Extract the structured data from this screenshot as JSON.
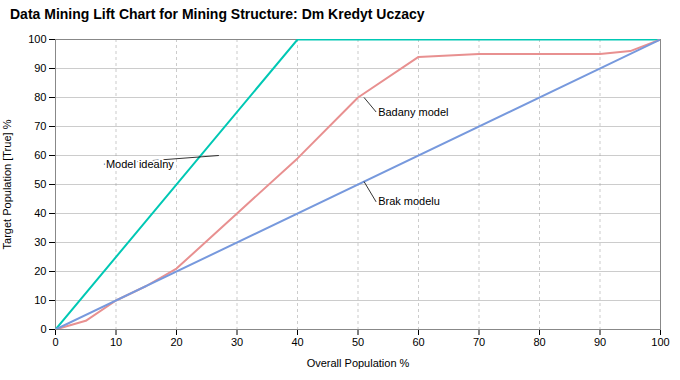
{
  "chart_data": {
    "type": "line",
    "title": "Data Mining Lift Chart for Mining Structure: Dm Kredyt Uczacy",
    "xlabel": "Overall Population %",
    "ylabel": "Target Population [True] %",
    "xlim": [
      0,
      100
    ],
    "ylim": [
      0,
      100
    ],
    "xticks": [
      0,
      10,
      20,
      30,
      40,
      50,
      60,
      70,
      80,
      90,
      100
    ],
    "yticks": [
      0,
      10,
      20,
      30,
      40,
      50,
      60,
      70,
      80,
      90,
      100
    ],
    "grid": true,
    "series": [
      {
        "color": "#00c8b4",
        "x": [
          0,
          40,
          100
        ],
        "values": [
          0,
          100,
          100
        ]
      },
      {
        "color": "#e89090",
        "x": [
          0,
          5,
          10,
          15,
          20,
          30,
          40,
          50,
          60,
          70,
          80,
          90,
          95,
          100
        ],
        "values": [
          0,
          3,
          10,
          15,
          21,
          40,
          59,
          80,
          94,
          95,
          95,
          95,
          96,
          100
        ]
      },
      {
        "color": "#7799dd",
        "x": [
          0,
          100
        ],
        "values": [
          0,
          100
        ]
      }
    ],
    "annotations": [
      {
        "text": "Model idealny",
        "xy": [
          27,
          60
        ],
        "xytext": [
          8,
          57
        ]
      },
      {
        "text": "Badany model",
        "xy": [
          51,
          80
        ],
        "xytext": [
          53,
          75
        ]
      },
      {
        "text": "Brak modelu",
        "xy": [
          51,
          51
        ],
        "xytext": [
          53,
          44
        ]
      }
    ]
  }
}
